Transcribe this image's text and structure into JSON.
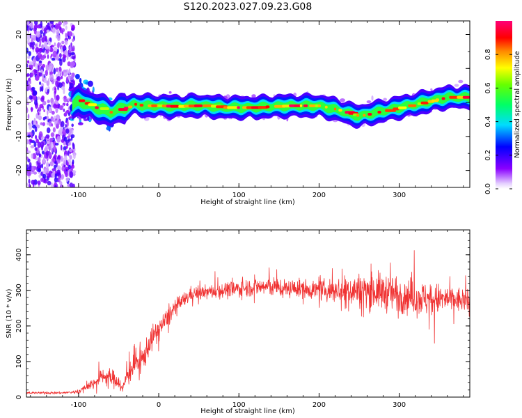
{
  "title": "S120.2023.027.09.23.G08",
  "chart_data": [
    {
      "type": "heatmap",
      "xlabel": "Height of straight line (km)",
      "ylabel": "Frequency (Hz)",
      "xlim": [
        -165,
        388
      ],
      "ylim": [
        -25,
        24
      ],
      "xticks": [
        -100,
        0,
        100,
        200,
        300
      ],
      "yticks": [
        -20,
        -10,
        0,
        10,
        20
      ],
      "colorbar": {
        "label": "Normalized spectral amplitude",
        "range": [
          0,
          1
        ],
        "ticks": [
          0.0,
          0.2,
          0.4,
          0.6,
          0.8
        ],
        "colormap": "rainbow (purple-blue-cyan-green-yellow-red-magenta)"
      },
      "ridge": {
        "x": [
          -110,
          -100,
          -90,
          -80,
          -70,
          -60,
          -50,
          -40,
          -30,
          -20,
          -10,
          0,
          20,
          40,
          60,
          80,
          100,
          120,
          140,
          160,
          180,
          200,
          220,
          240,
          250,
          260,
          280,
          300,
          320,
          340,
          360,
          388
        ],
        "y": [
          -1.5,
          0.5,
          -0.5,
          -1.5,
          -2.0,
          -3.0,
          -2.0,
          -1.5,
          -0.5,
          -1.0,
          -1.0,
          -1.0,
          -1.2,
          -1.0,
          -1.0,
          -1.5,
          -1.5,
          -1.5,
          -1.2,
          -1.0,
          -1.0,
          -1.0,
          -2.0,
          -3.5,
          -4.0,
          -3.5,
          -2.5,
          -1.5,
          -0.5,
          0.5,
          1.5,
          1.5
        ]
      }
    },
    {
      "type": "line",
      "xlabel": "Height of straight line (km)",
      "ylabel": "SNR (10 * v/v)",
      "xlim": [
        -165,
        388
      ],
      "ylim": [
        0,
        470
      ],
      "xticks": [
        -100,
        0,
        100,
        200,
        300
      ],
      "yticks": [
        0,
        100,
        200,
        300,
        400
      ],
      "color": "#f03232",
      "envelope": {
        "x": [
          -165,
          -120,
          -100,
          -90,
          -80,
          -70,
          -60,
          -50,
          -45,
          -40,
          -30,
          -20,
          -10,
          0,
          10,
          20,
          30,
          40,
          60,
          80,
          100,
          120,
          140,
          160,
          180,
          200,
          220,
          240,
          260,
          280,
          300,
          320,
          340,
          360,
          388
        ],
        "mean": [
          12,
          12,
          15,
          30,
          40,
          60,
          55,
          45,
          20,
          60,
          95,
          105,
          160,
          190,
          220,
          250,
          270,
          290,
          295,
          300,
          305,
          310,
          310,
          305,
          305,
          300,
          300,
          300,
          300,
          295,
          290,
          280,
          275,
          275,
          270
        ],
        "spread": [
          6,
          6,
          10,
          20,
          30,
          40,
          45,
          40,
          20,
          60,
          70,
          70,
          60,
          55,
          50,
          45,
          40,
          35,
          35,
          40,
          45,
          45,
          50,
          45,
          45,
          50,
          60,
          80,
          90,
          95,
          95,
          90,
          85,
          70,
          60
        ]
      }
    }
  ]
}
